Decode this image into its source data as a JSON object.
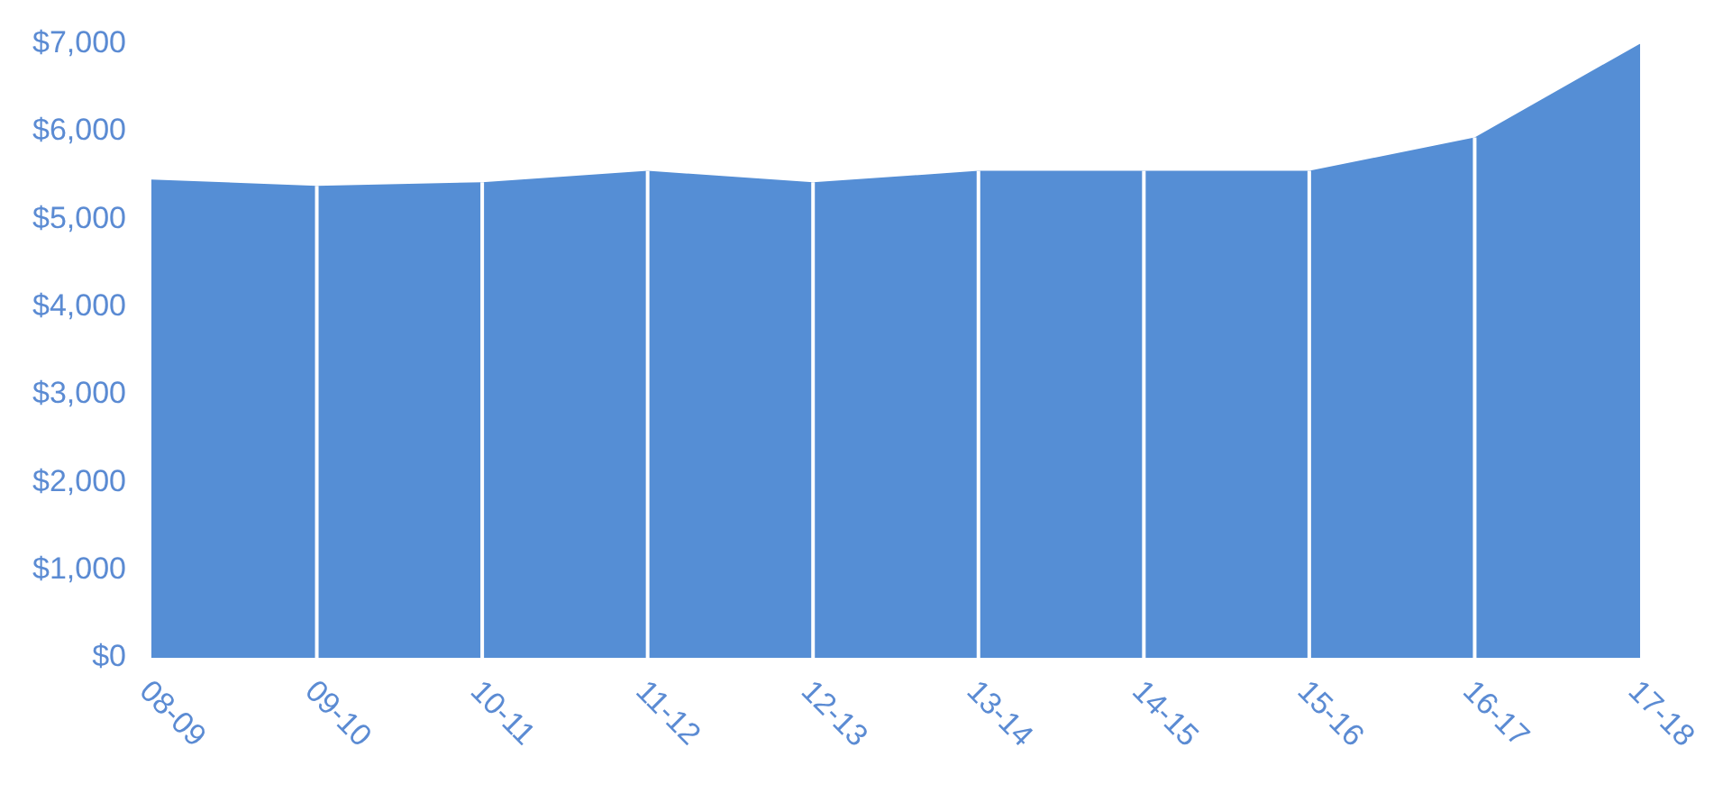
{
  "chart_data": {
    "type": "area",
    "categories": [
      "08-09",
      "09-10",
      "10-11",
      "11-12",
      "12-13",
      "13-14",
      "14-15",
      "15-16",
      "16-17",
      "17-18"
    ],
    "series": [
      {
        "color": "#558ed5",
        "values": [
          5450,
          5380,
          5420,
          5550,
          5420,
          5550,
          5550,
          5550,
          5930,
          7000
        ]
      }
    ],
    "ylim": [
      0,
      7000
    ],
    "yticks": [
      {
        "value": 0,
        "label": "$0"
      },
      {
        "value": 1000,
        "label": "$1,000"
      },
      {
        "value": 2000,
        "label": "$2,000"
      },
      {
        "value": 3000,
        "label": "$3,000"
      },
      {
        "value": 4000,
        "label": "$4,000"
      },
      {
        "value": 5000,
        "label": "$5,000"
      },
      {
        "value": 6000,
        "label": "$6,000"
      },
      {
        "value": 7000,
        "label": "$7,000"
      }
    ],
    "grid": "x",
    "legend": false
  }
}
